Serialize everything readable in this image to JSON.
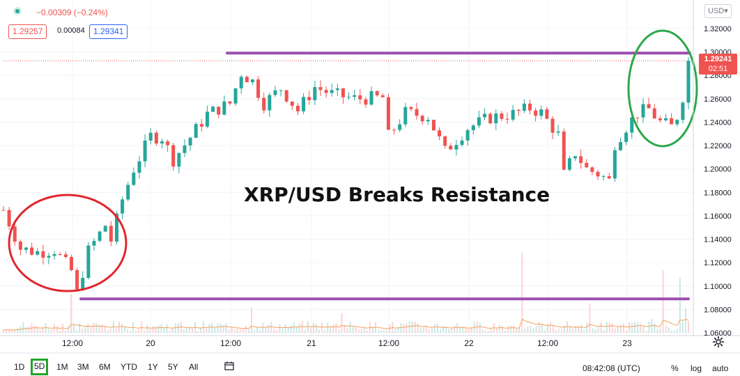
{
  "header": {
    "change_text": "−0.00309 (−0.24%)",
    "bid": "1.29257",
    "spread": "0.00084",
    "ask": "1.29341",
    "currency_selector": "USD",
    "currency_icon": "chevron-down-icon"
  },
  "current_price": {
    "value": "1.29241",
    "countdown": "02:51",
    "color": "#ef5350"
  },
  "annotation": {
    "text": "XRP/USD Breaks Resistance"
  },
  "footer": {
    "timeframes": [
      "1D",
      "5D",
      "1M",
      "3M",
      "6M",
      "YTD",
      "1Y",
      "5Y",
      "All"
    ],
    "active_timeframe": "5D",
    "clock": "08:42:08 (UTC)",
    "options": [
      "%",
      "log",
      "auto"
    ]
  },
  "colors": {
    "up": "#26a69a",
    "down": "#ef5350",
    "resistance_line": "#9c4fb0",
    "ellipse_red": "#e0262b",
    "ellipse_green": "#2ca84a",
    "volume_ma": "#f5a05a",
    "active_timeframe_border": "#22a32a"
  },
  "chart_data": {
    "type": "candlestick",
    "y_range": [
      1.04,
      1.34
    ],
    "y_ticks": [
      "1.06000",
      "1.08000",
      "1.10000",
      "1.12000",
      "1.14000",
      "1.16000",
      "1.18000",
      "1.20000",
      "1.22000",
      "1.24000",
      "1.26000",
      "1.28000",
      "1.30000",
      "1.32000"
    ],
    "x_ticks": [
      "12:00",
      "20",
      "12:00",
      "21",
      "12:00",
      "22",
      "12:00",
      "23"
    ],
    "price_path": [
      [
        0,
        1.165
      ],
      [
        3,
        1.132
      ],
      [
        6,
        1.129
      ],
      [
        9,
        1.131
      ],
      [
        12,
        1.113
      ],
      [
        13,
        1.094
      ],
      [
        15,
        1.13
      ],
      [
        18,
        1.152
      ],
      [
        19,
        1.139
      ],
      [
        21,
        1.174
      ],
      [
        23,
        1.2
      ],
      [
        26,
        1.228
      ],
      [
        28,
        1.227
      ],
      [
        30,
        1.208
      ],
      [
        33,
        1.227
      ],
      [
        36,
        1.247
      ],
      [
        40,
        1.256
      ],
      [
        42,
        1.282
      ],
      [
        44,
        1.275
      ],
      [
        46,
        1.256
      ],
      [
        49,
        1.269
      ],
      [
        52,
        1.25
      ],
      [
        55,
        1.27
      ],
      [
        58,
        1.264
      ],
      [
        62,
        1.26
      ],
      [
        67,
        1.261
      ],
      [
        68,
        1.228
      ],
      [
        71,
        1.248
      ],
      [
        75,
        1.245
      ],
      [
        78,
        1.215
      ],
      [
        82,
        1.235
      ],
      [
        86,
        1.244
      ],
      [
        90,
        1.247
      ],
      [
        93,
        1.252
      ],
      [
        95,
        1.248
      ],
      [
        98,
        1.229
      ],
      [
        99,
        1.195
      ],
      [
        101,
        1.214
      ],
      [
        103,
        1.2
      ],
      [
        105,
        1.196
      ],
      [
        107,
        1.19
      ],
      [
        108,
        1.222
      ],
      [
        110,
        1.236
      ],
      [
        112,
        1.248
      ],
      [
        114,
        1.251
      ],
      [
        116,
        1.24
      ],
      [
        118,
        1.236
      ],
      [
        119,
        1.245
      ],
      [
        120,
        1.262
      ],
      [
        121,
        1.292
      ]
    ],
    "resistance": 1.299,
    "support": 1.089,
    "last_price": 1.29241,
    "annotations": [
      "resistance line",
      "support line",
      "red ellipse (consolidation low)",
      "green ellipse (breakout)"
    ]
  }
}
